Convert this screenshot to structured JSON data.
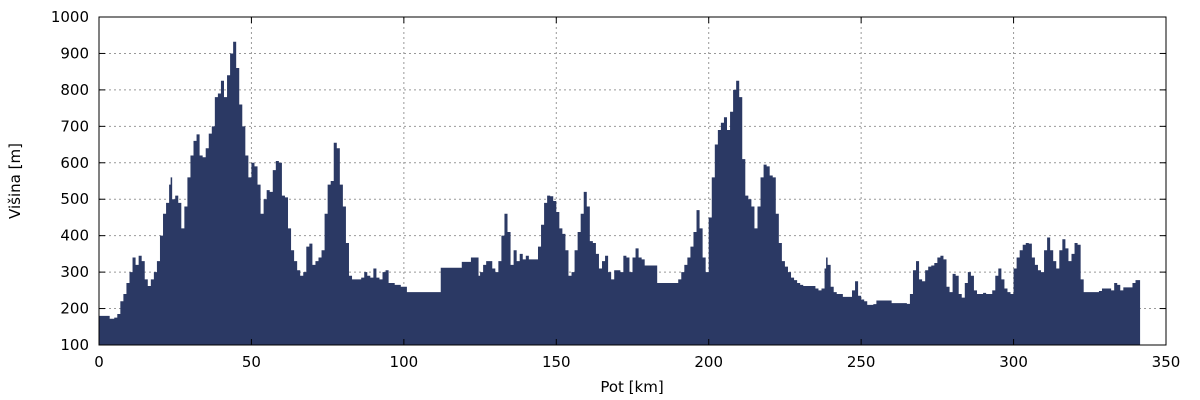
{
  "chart_data": {
    "type": "area",
    "title": "",
    "xlabel": "Pot [km]",
    "ylabel": "Višina [m]",
    "xlim": [
      0,
      350
    ],
    "ylim": [
      100,
      1000
    ],
    "xticks": [
      "0",
      "50",
      "100",
      "150",
      "200",
      "250",
      "300",
      "350"
    ],
    "yticks": [
      "100",
      "200",
      "300",
      "400",
      "500",
      "600",
      "700",
      "800",
      "900",
      "1000"
    ],
    "grid": true,
    "fill_color": "#2b3964",
    "series": [
      {
        "points": [
          [
            0,
            180
          ],
          [
            2,
            180
          ],
          [
            3.5,
            172
          ],
          [
            5,
            175
          ],
          [
            6,
            185
          ],
          [
            7,
            220
          ],
          [
            8,
            240
          ],
          [
            9,
            270
          ],
          [
            10,
            300
          ],
          [
            11,
            340
          ],
          [
            12,
            320
          ],
          [
            13,
            345
          ],
          [
            14,
            330
          ],
          [
            15,
            280
          ],
          [
            16,
            262
          ],
          [
            17,
            280
          ],
          [
            18,
            300
          ],
          [
            19,
            330
          ],
          [
            20,
            400
          ],
          [
            21,
            460
          ],
          [
            22,
            490
          ],
          [
            23,
            540
          ],
          [
            23.5,
            560
          ],
          [
            24,
            500
          ],
          [
            25,
            510
          ],
          [
            26,
            490
          ],
          [
            27,
            420
          ],
          [
            28,
            480
          ],
          [
            29,
            560
          ],
          [
            30,
            620
          ],
          [
            31,
            660
          ],
          [
            32,
            678
          ],
          [
            33,
            620
          ],
          [
            34,
            615
          ],
          [
            35,
            640
          ],
          [
            36,
            680
          ],
          [
            37,
            700
          ],
          [
            38,
            780
          ],
          [
            39,
            790
          ],
          [
            40,
            825
          ],
          [
            41,
            780
          ],
          [
            42,
            840
          ],
          [
            43,
            900
          ],
          [
            44,
            932
          ],
          [
            45,
            860
          ],
          [
            46,
            760
          ],
          [
            47,
            700
          ],
          [
            48,
            620
          ],
          [
            49,
            560
          ],
          [
            50,
            600
          ],
          [
            51,
            590
          ],
          [
            52,
            540
          ],
          [
            53,
            460
          ],
          [
            54,
            500
          ],
          [
            55,
            525
          ],
          [
            56,
            520
          ],
          [
            57,
            580
          ],
          [
            58,
            605
          ],
          [
            59,
            600
          ],
          [
            60,
            510
          ],
          [
            61,
            505
          ],
          [
            62,
            420
          ],
          [
            63,
            360
          ],
          [
            64,
            330
          ],
          [
            65,
            305
          ],
          [
            66,
            290
          ],
          [
            67,
            300
          ],
          [
            68,
            370
          ],
          [
            69,
            378
          ],
          [
            70,
            320
          ],
          [
            71,
            330
          ],
          [
            72,
            340
          ],
          [
            73,
            360
          ],
          [
            74,
            460
          ],
          [
            75,
            540
          ],
          [
            76,
            550
          ],
          [
            77,
            655
          ],
          [
            78,
            640
          ],
          [
            79,
            540
          ],
          [
            80,
            480
          ],
          [
            81,
            380
          ],
          [
            82,
            290
          ],
          [
            83,
            280
          ],
          [
            85,
            280
          ],
          [
            86,
            285
          ],
          [
            87,
            300
          ],
          [
            88,
            290
          ],
          [
            89,
            285
          ],
          [
            90,
            310
          ],
          [
            91,
            285
          ],
          [
            92,
            280
          ],
          [
            93,
            300
          ],
          [
            94,
            305
          ],
          [
            95,
            270
          ],
          [
            97,
            265
          ],
          [
            99,
            260
          ],
          [
            101,
            245
          ],
          [
            112,
            245
          ],
          [
            112.1,
            312
          ],
          [
            118,
            312
          ],
          [
            119,
            328
          ],
          [
            121,
            328
          ],
          [
            122,
            340
          ],
          [
            124,
            340
          ],
          [
            124.5,
            290
          ],
          [
            125,
            300
          ],
          [
            126,
            320
          ],
          [
            127,
            330
          ],
          [
            128,
            330
          ],
          [
            129,
            310
          ],
          [
            130,
            300
          ],
          [
            131,
            330
          ],
          [
            132,
            400
          ],
          [
            133,
            460
          ],
          [
            134,
            410
          ],
          [
            135,
            320
          ],
          [
            136,
            360
          ],
          [
            137,
            330
          ],
          [
            138,
            350
          ],
          [
            139,
            335
          ],
          [
            140,
            345
          ],
          [
            141,
            335
          ],
          [
            143,
            335
          ],
          [
            144,
            370
          ],
          [
            145,
            430
          ],
          [
            146,
            490
          ],
          [
            147,
            510
          ],
          [
            148,
            508
          ],
          [
            149,
            495
          ],
          [
            150,
            465
          ],
          [
            151,
            420
          ],
          [
            152,
            405
          ],
          [
            153,
            360
          ],
          [
            154,
            290
          ],
          [
            155,
            300
          ],
          [
            156,
            360
          ],
          [
            157,
            410
          ],
          [
            158,
            460
          ],
          [
            159,
            520
          ],
          [
            160,
            480
          ],
          [
            161,
            385
          ],
          [
            162,
            380
          ],
          [
            163,
            350
          ],
          [
            164,
            310
          ],
          [
            165,
            330
          ],
          [
            166,
            345
          ],
          [
            167,
            300
          ],
          [
            168,
            280
          ],
          [
            169,
            305
          ],
          [
            170,
            305
          ],
          [
            171,
            300
          ],
          [
            172,
            345
          ],
          [
            173,
            340
          ],
          [
            174,
            300
          ],
          [
            175,
            340
          ],
          [
            176,
            365
          ],
          [
            177,
            340
          ],
          [
            178,
            335
          ],
          [
            179,
            318
          ],
          [
            183,
            318
          ],
          [
            183.1,
            270
          ],
          [
            189,
            270
          ],
          [
            190,
            280
          ],
          [
            191,
            300
          ],
          [
            192,
            320
          ],
          [
            193,
            340
          ],
          [
            194,
            370
          ],
          [
            195,
            410
          ],
          [
            196,
            470
          ],
          [
            197,
            420
          ],
          [
            198,
            340
          ],
          [
            199,
            300
          ],
          [
            200,
            450
          ],
          [
            201,
            560
          ],
          [
            202,
            650
          ],
          [
            203,
            690
          ],
          [
            204,
            710
          ],
          [
            205,
            725
          ],
          [
            206,
            690
          ],
          [
            207,
            740
          ],
          [
            208,
            800
          ],
          [
            209,
            825
          ],
          [
            210,
            780
          ],
          [
            211,
            610
          ],
          [
            212,
            510
          ],
          [
            213,
            500
          ],
          [
            214,
            480
          ],
          [
            215,
            420
          ],
          [
            216,
            480
          ],
          [
            217,
            560
          ],
          [
            218,
            595
          ],
          [
            219,
            590
          ],
          [
            220,
            565
          ],
          [
            221,
            560
          ],
          [
            222,
            460
          ],
          [
            223,
            380
          ],
          [
            224,
            330
          ],
          [
            225,
            315
          ],
          [
            226,
            300
          ],
          [
            227,
            285
          ],
          [
            228,
            278
          ],
          [
            229,
            270
          ],
          [
            230,
            265
          ],
          [
            231,
            262
          ],
          [
            233,
            262
          ],
          [
            235,
            255
          ],
          [
            236,
            250
          ],
          [
            237,
            255
          ],
          [
            238,
            310
          ],
          [
            238.5,
            340
          ],
          [
            239,
            320
          ],
          [
            240,
            260
          ],
          [
            241,
            245
          ],
          [
            242,
            240
          ],
          [
            244,
            232
          ],
          [
            246,
            232
          ],
          [
            247,
            250
          ],
          [
            248,
            275
          ],
          [
            249,
            235
          ],
          [
            250,
            225
          ],
          [
            251,
            220
          ],
          [
            252,
            210
          ],
          [
            254,
            212
          ],
          [
            255,
            222
          ],
          [
            257,
            222
          ],
          [
            260,
            215
          ],
          [
            263,
            215
          ],
          [
            265,
            213
          ],
          [
            266,
            240
          ],
          [
            267,
            305
          ],
          [
            268,
            330
          ],
          [
            269,
            280
          ],
          [
            270,
            275
          ],
          [
            271,
            305
          ],
          [
            272,
            315
          ],
          [
            273,
            318
          ],
          [
            274,
            325
          ],
          [
            275,
            340
          ],
          [
            276,
            345
          ],
          [
            277,
            335
          ],
          [
            278,
            260
          ],
          [
            279,
            245
          ],
          [
            280,
            295
          ],
          [
            281,
            290
          ],
          [
            282,
            240
          ],
          [
            283,
            230
          ],
          [
            284,
            270
          ],
          [
            285,
            300
          ],
          [
            286,
            290
          ],
          [
            287,
            250
          ],
          [
            288,
            240
          ],
          [
            290,
            243
          ],
          [
            291,
            240
          ],
          [
            293,
            250
          ],
          [
            294,
            290
          ],
          [
            295,
            310
          ],
          [
            296,
            280
          ],
          [
            297,
            255
          ],
          [
            298,
            245
          ],
          [
            299,
            240
          ],
          [
            300,
            310
          ],
          [
            301,
            340
          ],
          [
            302,
            360
          ],
          [
            303,
            375
          ],
          [
            304,
            380
          ],
          [
            305,
            378
          ],
          [
            306,
            340
          ],
          [
            307,
            320
          ],
          [
            308,
            305
          ],
          [
            309,
            300
          ],
          [
            310,
            360
          ],
          [
            311,
            395
          ],
          [
            312,
            360
          ],
          [
            313,
            330
          ],
          [
            314,
            310
          ],
          [
            315,
            360
          ],
          [
            316,
            390
          ],
          [
            317,
            365
          ],
          [
            318,
            330
          ],
          [
            319,
            350
          ],
          [
            320,
            380
          ],
          [
            321,
            375
          ],
          [
            322,
            280
          ],
          [
            323,
            245
          ],
          [
            325,
            245
          ],
          [
            328,
            248
          ],
          [
            329,
            255
          ],
          [
            331,
            255
          ],
          [
            332,
            250
          ],
          [
            333,
            270
          ],
          [
            334,
            265
          ],
          [
            335,
            250
          ],
          [
            336,
            258
          ],
          [
            338,
            258
          ],
          [
            339,
            270
          ],
          [
            340,
            278
          ],
          [
            341.5,
            280
          ]
        ]
      }
    ]
  }
}
